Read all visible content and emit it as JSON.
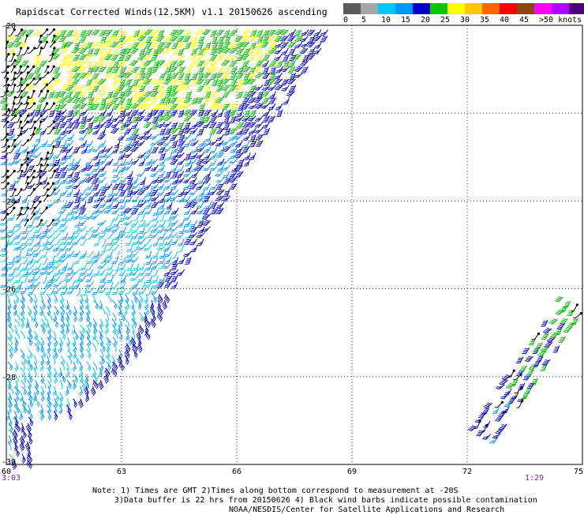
{
  "title": "Rapidscat Corrected Winds(12.5KM) v1.1 20150626 ascending",
  "scale": {
    "colors": [
      "#5a5a5a",
      "#a6a6a6",
      "#00c8ff",
      "#0096ff",
      "#0000c8",
      "#00c800",
      "#ffff00",
      "#ffc800",
      "#ff6400",
      "#ff0000",
      "#8b4513",
      "#ff00ff",
      "#b400ff",
      "#4b0082"
    ],
    "labels": [
      "0",
      "5",
      "10",
      "15",
      "20",
      "25",
      "30",
      "35",
      "40",
      "45",
      ">50 knots"
    ],
    "speed_bands": [
      {
        "min": 0,
        "max": 5,
        "color": "#000000"
      },
      {
        "min": 5,
        "max": 10,
        "color": "#00c8e6"
      },
      {
        "min": 10,
        "max": 15,
        "color": "#0096ff"
      },
      {
        "min": 15,
        "max": 20,
        "color": "#0000b4"
      },
      {
        "min": 20,
        "max": 25,
        "color": "#00b400"
      },
      {
        "min": 25,
        "max": 30,
        "color": "#ffff00"
      }
    ]
  },
  "map": {
    "lon_labels": [
      "60",
      "63",
      "66",
      "69",
      "72",
      "75"
    ],
    "lat_labels": [
      "-20",
      "-22",
      "-24",
      "-26",
      "-28",
      "-30"
    ],
    "lon_range": [
      60,
      75
    ],
    "lat_range": [
      -20,
      -30
    ],
    "grid": "dotted",
    "time_labels": [
      "3:03",
      "1:29"
    ]
  },
  "notes": {
    "line1": "Note: 1) Times are GMT 2)Times along bottom correspond to measurement at -20S",
    "line2": "3)Data buffer is 22 hrs from 20150626 4) Black wind barbs indicate possible contamination",
    "line3": "NOAA/NESDIS/Center for Satellite Applications and Research"
  }
}
